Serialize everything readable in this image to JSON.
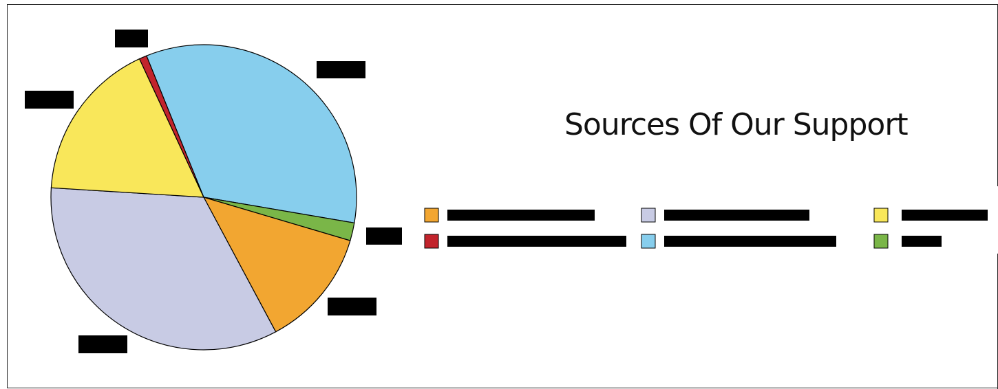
{
  "chart_data": {
    "type": "pie",
    "title": "Sources Of Our Support",
    "stroke_color": "#000000",
    "slices": [
      {
        "label": "",
        "value": 33.8,
        "color": "#87ceed"
      },
      {
        "label": "",
        "value": 1.9,
        "color": "#7ab648"
      },
      {
        "label": "",
        "value": 12.6,
        "color": "#f2a631"
      },
      {
        "label": "",
        "value": 33.8,
        "color": "#c8cbe4"
      },
      {
        "label": "",
        "value": 17.1,
        "color": "#f9e75a"
      },
      {
        "label": "",
        "value": 0.8,
        "color": "#c2242c"
      }
    ],
    "legend": {
      "placement": "right",
      "entries": [
        {
          "label": "",
          "color": "#f2a631"
        },
        {
          "label": "",
          "color": "#c8cbe4"
        },
        {
          "label": "",
          "color": "#f9e75a"
        },
        {
          "label": "",
          "color": "#c2242c"
        },
        {
          "label": "",
          "color": "#87ceed"
        },
        {
          "label": "",
          "color": "#7ab648"
        }
      ]
    }
  }
}
